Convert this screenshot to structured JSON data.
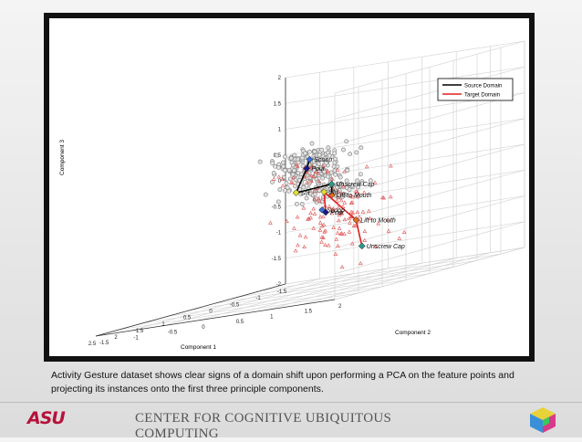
{
  "caption": "Activity Gesture dataset shows clear signs of a domain shift upon performing a PCA on the feature points and projecting its instances onto the first three principle components.",
  "footer": {
    "org_logo": "ASU",
    "title": "CENTER FOR COGNITIVE UBIQUITOUS COMPUTING",
    "icon": "cube-icon"
  },
  "colors": {
    "source": "#000000",
    "target": "#e02020",
    "source_points": "#888888",
    "target_points": "#e05050"
  },
  "chart_data": {
    "type": "scatter",
    "projection": "3d",
    "xlabel": "Component 1",
    "ylabel": "Component 2",
    "zlabel": "Component 3",
    "xlim": [
      -1.5,
      2.5
    ],
    "ylim": [
      -1.5,
      2
    ],
    "zlim": [
      -2,
      2
    ],
    "x_ticks": [
      "-1.5",
      "-1",
      "-0.5",
      "0",
      "0.5",
      "1",
      "1.5",
      "2",
      "2.5"
    ],
    "y_ticks": [
      "-1.5",
      "-1",
      "-0.5",
      "0",
      "0.5",
      "1",
      "1.5",
      "2"
    ],
    "z_ticks": [
      "-2",
      "-1.5",
      "-1",
      "-0.5",
      "0",
      "0.5",
      "1",
      "1.5",
      "2"
    ],
    "grid": true,
    "legend": {
      "placement": "top-right",
      "entries": [
        "Source Domain",
        "Target Domain"
      ]
    },
    "series": [
      {
        "name": "Source Domain",
        "color": "#000000",
        "path": [
          {
            "label": "Scoop",
            "x": -1.0,
            "y": -0.8,
            "z": 0.4
          },
          {
            "label": "Pour",
            "x": 0.5,
            "y": 0.2,
            "z": 0.4
          },
          {
            "label": "Stir",
            "x": 1.3,
            "y": 0.6,
            "z": 0.05
          },
          {
            "label": "Unscrew Cap",
            "x": -0.6,
            "y": -0.2,
            "z": -0.1
          },
          {
            "label": "Lift to Mouth",
            "x": 0.4,
            "y": 0.5,
            "z": -0.2
          }
        ]
      },
      {
        "name": "Target Domain",
        "color": "#e02020",
        "path": [
          {
            "label": "Scoop",
            "x": -0.4,
            "y": -0.2,
            "z": -0.55
          },
          {
            "label": "Pour",
            "x": 0.1,
            "y": 0.2,
            "z": -0.55
          },
          {
            "label": "Stir",
            "x": 1.0,
            "y": 0.8,
            "z": -0.05
          },
          {
            "label": "Lift to Mouth",
            "x": 0.9,
            "y": 1.2,
            "z": -0.7
          },
          {
            "label": "Unscrew Cap",
            "x": 0.2,
            "y": 0.8,
            "z": -1.3
          }
        ]
      }
    ],
    "centroid_colors": {
      "Scoop": "#3a6fd8",
      "Pour": "#1a1a8a",
      "Stir": "#e0e030",
      "Unscrew Cap": "#2a9a8a",
      "Lift to Mouth": "#e07020"
    },
    "source_point_clusters": [
      {
        "x": -1.0,
        "y": -0.8,
        "z": 0.45,
        "n": 70,
        "spread": [
          0.35,
          0.35,
          0.15
        ]
      },
      {
        "x": -0.2,
        "y": -0.3,
        "z": 0.35,
        "n": 40,
        "spread": [
          0.35,
          0.25,
          0.18
        ]
      },
      {
        "x": 0.6,
        "y": 0.3,
        "z": 0.35,
        "n": 35,
        "spread": [
          0.2,
          0.2,
          0.15
        ]
      },
      {
        "x": 1.2,
        "y": 0.6,
        "z": 0.2,
        "n": 60,
        "spread": [
          0.25,
          0.25,
          0.3
        ]
      },
      {
        "x": -0.5,
        "y": -0.2,
        "z": -0.15,
        "n": 50,
        "spread": [
          0.3,
          0.25,
          0.2
        ]
      },
      {
        "x": 0.3,
        "y": 0.4,
        "z": -0.15,
        "n": 30,
        "spread": [
          0.25,
          0.2,
          0.15
        ]
      }
    ],
    "target_point_clusters": [
      {
        "x": 1.0,
        "y": 1.0,
        "z": -0.4,
        "n": 60,
        "spread": [
          0.5,
          0.5,
          0.45
        ]
      },
      {
        "x": 0.1,
        "y": 0.4,
        "z": -0.9,
        "n": 50,
        "spread": [
          0.55,
          0.5,
          0.45
        ]
      },
      {
        "x": 1.4,
        "y": 0.8,
        "z": 0.4,
        "n": 25,
        "spread": [
          0.25,
          0.25,
          0.2
        ]
      }
    ]
  }
}
